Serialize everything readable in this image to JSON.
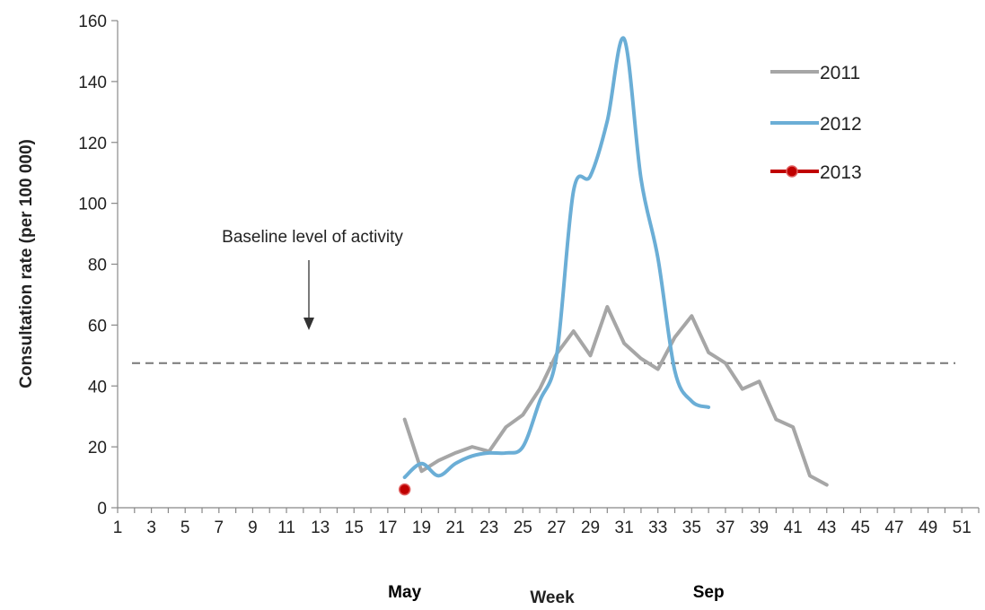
{
  "chart_data": {
    "type": "line",
    "title": "",
    "xlabel": "Week",
    "ylabel": "Consultation rate (per 100 000)",
    "xlim": [
      1,
      52
    ],
    "ylim": [
      0,
      160
    ],
    "x_ticks": [
      1,
      3,
      5,
      7,
      9,
      11,
      13,
      15,
      17,
      19,
      21,
      23,
      25,
      27,
      29,
      31,
      33,
      35,
      37,
      39,
      41,
      43,
      45,
      47,
      49,
      51
    ],
    "y_ticks": [
      0,
      20,
      40,
      60,
      80,
      100,
      120,
      140,
      160
    ],
    "grid": false,
    "legend_position": "top-right",
    "month_labels": [
      {
        "label": "May",
        "week": 18
      },
      {
        "label": "Sep",
        "week": 36
      }
    ],
    "baseline": {
      "value": 47.5,
      "label": "Baseline level of activity",
      "color": "#808080"
    },
    "series": [
      {
        "name": "2011",
        "color": "#a6a6a6",
        "marker": false,
        "smooth": false,
        "x": [
          18,
          19,
          20,
          21,
          22,
          23,
          24,
          25,
          26,
          27,
          28,
          29,
          30,
          31,
          32,
          33,
          34,
          35,
          36,
          37,
          38,
          39,
          40,
          41,
          42,
          43
        ],
        "y": [
          29,
          12,
          15.5,
          18,
          20,
          18.5,
          26.5,
          30.5,
          39,
          50.5,
          58,
          50,
          66,
          54,
          49,
          45.5,
          56,
          63,
          51,
          47.5,
          39,
          41.5,
          29,
          26.5,
          10.5,
          7.5
        ]
      },
      {
        "name": "2012",
        "color": "#6baed6",
        "marker": false,
        "smooth": true,
        "x": [
          18,
          19,
          20,
          21,
          22,
          23,
          24,
          25,
          26,
          27,
          28,
          29,
          30,
          31,
          32,
          33,
          34,
          35,
          36
        ],
        "y": [
          10,
          14.5,
          10.5,
          14.5,
          17,
          18,
          18,
          20,
          35,
          50,
          104,
          109,
          127,
          154,
          108,
          82,
          45,
          35,
          33
        ]
      },
      {
        "name": "2013",
        "color": "#c00000",
        "marker": true,
        "smooth": false,
        "x": [
          18
        ],
        "y": [
          6
        ]
      }
    ]
  }
}
